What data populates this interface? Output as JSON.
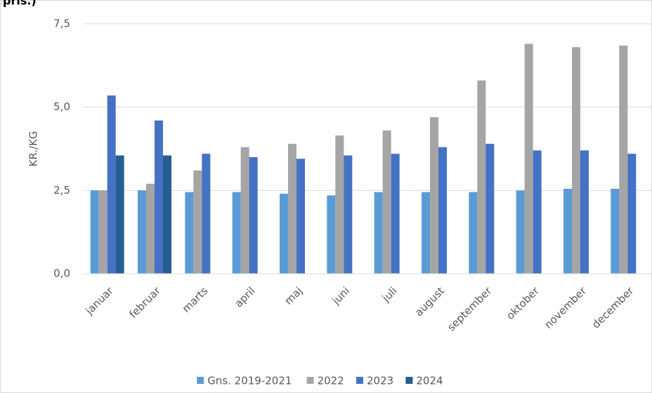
{
  "chart_data": {
    "type": "bar",
    "title": "pris.)",
    "y_label": "KR./KG",
    "categories": [
      "januar",
      "februar",
      "marts",
      "april",
      "maj",
      "juni",
      "juli",
      "august",
      "september",
      "oktober",
      "november",
      "december"
    ],
    "series": [
      {
        "name": "Gns. 2019-2021",
        "color": "#5b9bd5",
        "values": [
          2.5,
          2.5,
          2.45,
          2.45,
          2.4,
          2.35,
          2.45,
          2.45,
          2.45,
          2.5,
          2.55,
          2.55
        ]
      },
      {
        "name": "2022",
        "color": "#a5a5a5",
        "values": [
          2.5,
          2.7,
          3.1,
          3.8,
          3.9,
          4.15,
          4.3,
          4.7,
          5.8,
          6.9,
          6.8,
          6.85
        ]
      },
      {
        "name": "2023",
        "color": "#4472c4",
        "values": [
          5.35,
          4.6,
          3.6,
          3.5,
          3.45,
          3.55,
          3.6,
          3.8,
          3.9,
          3.7,
          3.7,
          3.6
        ]
      },
      {
        "name": "2024",
        "color": "#255e91",
        "values": [
          3.55,
          3.55,
          null,
          null,
          null,
          null,
          null,
          null,
          null,
          null,
          null,
          null
        ]
      }
    ],
    "ylim": [
      0,
      7.5
    ],
    "yticks": [
      {
        "value": 0,
        "label": "0,0"
      },
      {
        "value": 2.5,
        "label": "2,5"
      },
      {
        "value": 5,
        "label": "5,0"
      },
      {
        "value": 7.5,
        "label": "7,5"
      }
    ],
    "grid": true,
    "legend": "bottom"
  }
}
